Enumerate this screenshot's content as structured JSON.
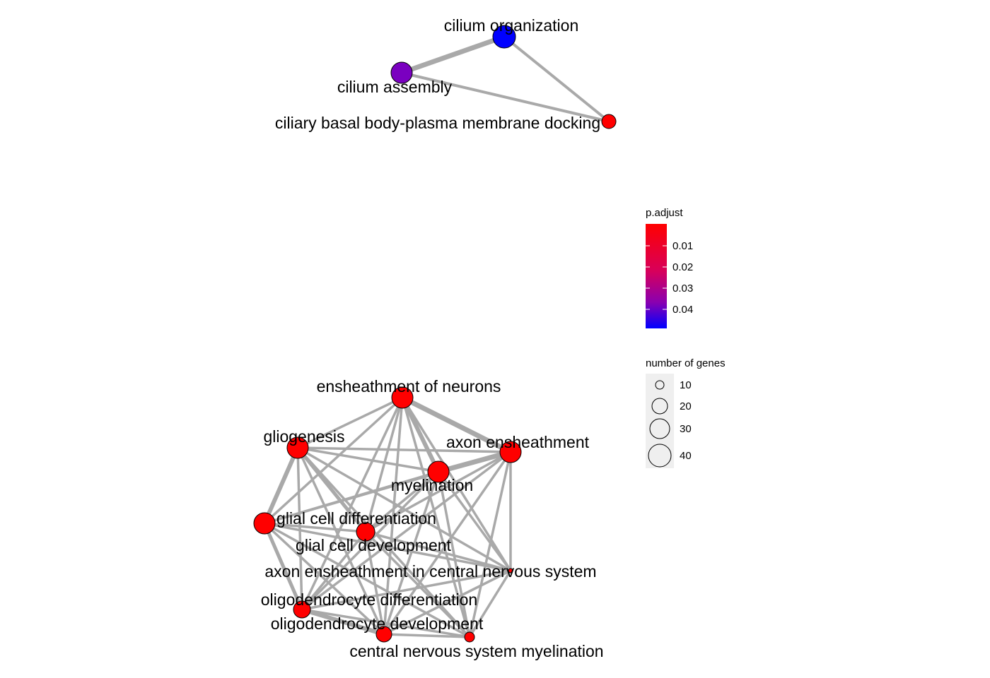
{
  "colors": {
    "low_padjust": "#ff0000",
    "high_padjust": "#0000ff",
    "edge": "#a9a9a9",
    "node_stroke": "#000000",
    "size_key_bg": "#efefef"
  },
  "network": {
    "type": "enrichment-map",
    "nodes": [
      {
        "id": "cilium_organization",
        "label": "cilium organization",
        "color": "#0000ff"
      },
      {
        "id": "cilium_assembly",
        "label": "cilium assembly",
        "color": "#7a00c0"
      },
      {
        "id": "ciliary_basal_body",
        "label": "ciliary basal body-plasma membrane docking",
        "color": "#ff0000"
      },
      {
        "id": "ensheathment_of_neurons",
        "label": "ensheathment of neurons",
        "color": "#ff0000"
      },
      {
        "id": "gliogenesis",
        "label": "gliogenesis",
        "color": "#ff0000"
      },
      {
        "id": "axon_ensheathment",
        "label": "axon ensheathment",
        "color": "#ff0000"
      },
      {
        "id": "myelination",
        "label": "myelination",
        "color": "#ff0000"
      },
      {
        "id": "glial_cell_differentiation",
        "label": "glial cell differentiation",
        "color": "#ff0000"
      },
      {
        "id": "glial_cell_development",
        "label": "glial cell development",
        "color": "#ff0000"
      },
      {
        "id": "axon_ensheathment_cns",
        "label": "axon ensheathment in central nervous system",
        "color": "#ff0000"
      },
      {
        "id": "oligodendrocyte_differentiation",
        "label": "oligodendrocyte differentiation",
        "color": "#ff0000"
      },
      {
        "id": "oligodendrocyte_development",
        "label": "oligodendrocyte development",
        "color": "#ff0000"
      },
      {
        "id": "cns_myelination",
        "label": "central nervous system myelination",
        "color": "#ff0000"
      }
    ]
  },
  "legend": {
    "color_title": "p.adjust",
    "color_ticks": [
      "0.01",
      "0.02",
      "0.03",
      "0.04"
    ],
    "size_title": "number of genes",
    "size_ticks": [
      "10",
      "20",
      "30",
      "40"
    ]
  }
}
